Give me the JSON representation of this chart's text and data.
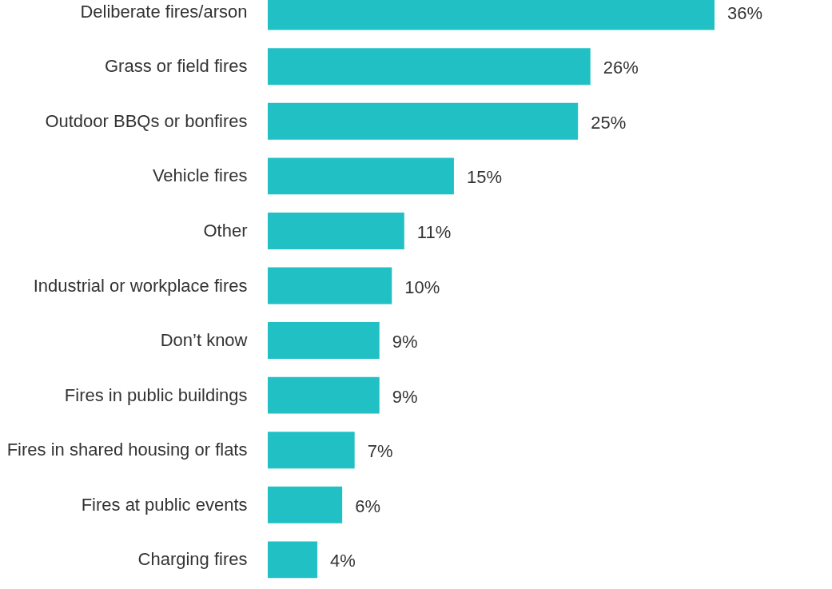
{
  "chart_data": {
    "type": "bar",
    "orientation": "horizontal",
    "categories": [
      "Deliberate fires/arson",
      "Grass or field fires",
      "Outdoor BBQs or bonfires",
      "Vehicle fires",
      "Other",
      "Industrial or workplace fires",
      "Don’t know",
      "Fires in public buildings",
      "Fires in shared housing or flats",
      "Fires at public events",
      "Charging fires"
    ],
    "values": [
      36,
      26,
      25,
      15,
      11,
      10,
      9,
      9,
      7,
      6,
      4
    ],
    "value_labels": [
      "36%",
      "26%",
      "25%",
      "15%",
      "11%",
      "10%",
      "9%",
      "9%",
      "7%",
      "6%",
      "4%"
    ],
    "color": "#20c0c4"
  }
}
